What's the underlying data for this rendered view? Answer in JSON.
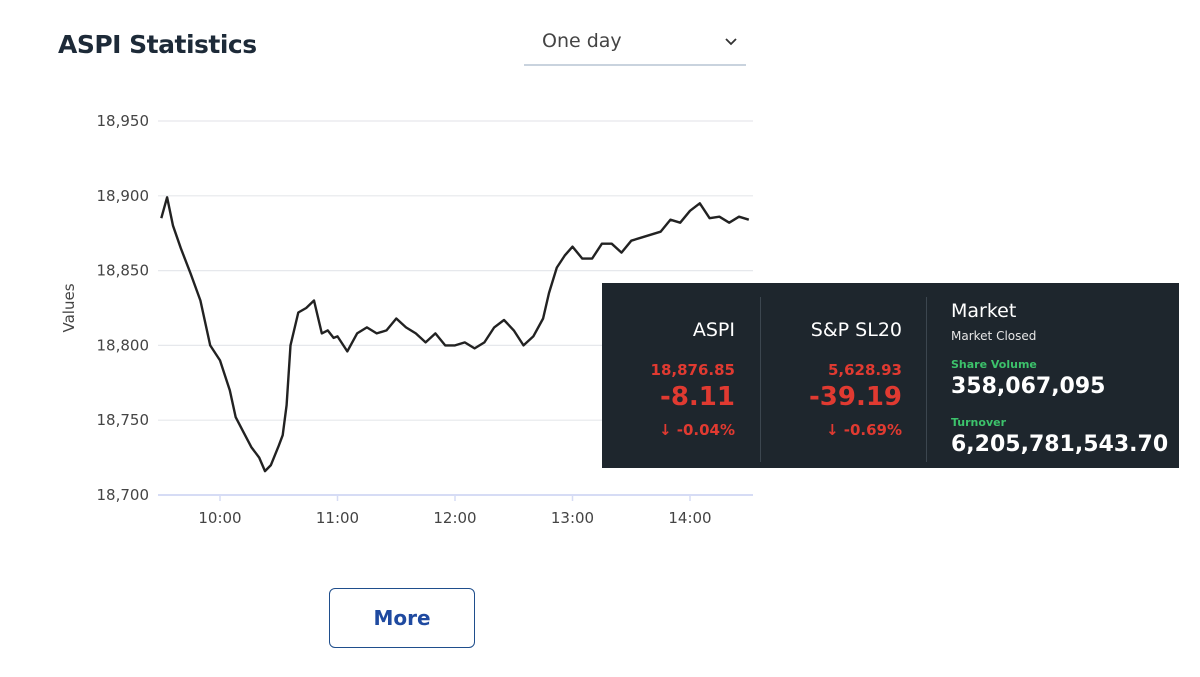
{
  "header": {
    "title": "ASPI Statistics",
    "period_select": {
      "value": "One day",
      "icon": "chevron-down-icon"
    }
  },
  "chart_data": {
    "type": "line",
    "title": "",
    "xlabel": "",
    "ylabel": "Values",
    "ylim": [
      18700,
      18950
    ],
    "y_ticks": [
      "18,700",
      "18,750",
      "18,800",
      "18,850",
      "18,900",
      "18,950"
    ],
    "x_ticks": [
      "10:00",
      "11:00",
      "12:00",
      "13:00",
      "14:00"
    ],
    "grid": true,
    "color": "#222222",
    "series": [
      {
        "x": [
          "09:30",
          "09:33",
          "09:36",
          "09:40",
          "09:45",
          "09:50",
          "09:55",
          "10:00",
          "10:05",
          "10:08",
          "10:12",
          "10:16",
          "10:20",
          "10:23",
          "10:26",
          "10:30",
          "10:32",
          "10:34",
          "10:36",
          "10:40",
          "10:44",
          "10:48",
          "10:52",
          "10:55",
          "10:58",
          "11:00",
          "11:05",
          "11:10",
          "11:15",
          "11:20",
          "11:25",
          "11:30",
          "11:35",
          "11:40",
          "11:45",
          "11:50",
          "11:55",
          "12:00",
          "12:05",
          "12:10",
          "12:15",
          "12:20",
          "12:25",
          "12:30",
          "12:35",
          "12:40",
          "12:45",
          "12:48",
          "12:52",
          "12:56",
          "13:00",
          "13:05",
          "13:10",
          "13:15",
          "13:20",
          "13:25",
          "13:30",
          "13:35",
          "13:40",
          "13:45",
          "13:50",
          "13:55",
          "14:00",
          "14:05",
          "14:10",
          "14:15",
          "14:20",
          "14:25",
          "14:30"
        ],
        "y": [
          18885,
          18899,
          18880,
          18865,
          18848,
          18830,
          18800,
          18790,
          18770,
          18752,
          18742,
          18732,
          18725,
          18716,
          18720,
          18733,
          18740,
          18760,
          18800,
          18822,
          18825,
          18830,
          18808,
          18810,
          18805,
          18806,
          18796,
          18808,
          18812,
          18808,
          18810,
          18818,
          18812,
          18808,
          18802,
          18808,
          18800,
          18800,
          18802,
          18798,
          18802,
          18812,
          18817,
          18810,
          18800,
          18806,
          18818,
          18835,
          18852,
          18860,
          18866,
          18858,
          18858,
          18868,
          18868,
          18862,
          18870,
          18872,
          18874,
          18876,
          18884,
          18882,
          18890,
          18895,
          18885,
          18886,
          18882,
          18886,
          18884
        ]
      }
    ]
  },
  "panel": {
    "aspi": {
      "name": "ASPI",
      "value": "18,876.85",
      "change": "-8.11",
      "pct": "↓ -0.04%"
    },
    "snp": {
      "name": "S&P SL20",
      "value": "5,628.93",
      "change": "-39.19",
      "pct": "↓ -0.69%"
    },
    "market": {
      "title": "Market",
      "status": "Market Closed",
      "volume_label": "Share Volume",
      "volume": "358,067,095",
      "turnover_label": "Turnover",
      "turnover": "6,205,781,543.70"
    }
  },
  "more_button": {
    "label": "More"
  }
}
